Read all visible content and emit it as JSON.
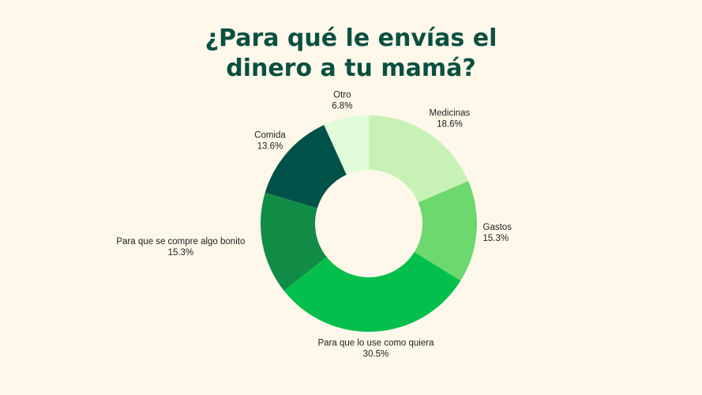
{
  "chart_data": {
    "type": "pie",
    "donut": true,
    "title_lines": [
      "¿Para qué le envías el",
      "dinero a tu mamá?"
    ],
    "slices": [
      {
        "label": "Medicinas",
        "value": 18.6,
        "display": "18.6%",
        "color": "#c8f1b6"
      },
      {
        "label": "Gastos",
        "value": 15.3,
        "display": "15.3%",
        "color": "#6dd86d"
      },
      {
        "label": "Para que lo use como quiera",
        "value": 30.5,
        "display": "30.5%",
        "color": "#05bf4c"
      },
      {
        "label": "Para que se compre algo bonito",
        "value": 15.3,
        "display": "15.3%",
        "color": "#118c47"
      },
      {
        "label": "Comida",
        "value": 13.6,
        "display": "13.6%",
        "color": "#005249"
      },
      {
        "label": "Otro",
        "value": 6.8,
        "display": "6.8%",
        "color": "#e0fcd8"
      }
    ]
  },
  "colors": {
    "background": "#fdf8ea",
    "title": "#0a5040"
  }
}
